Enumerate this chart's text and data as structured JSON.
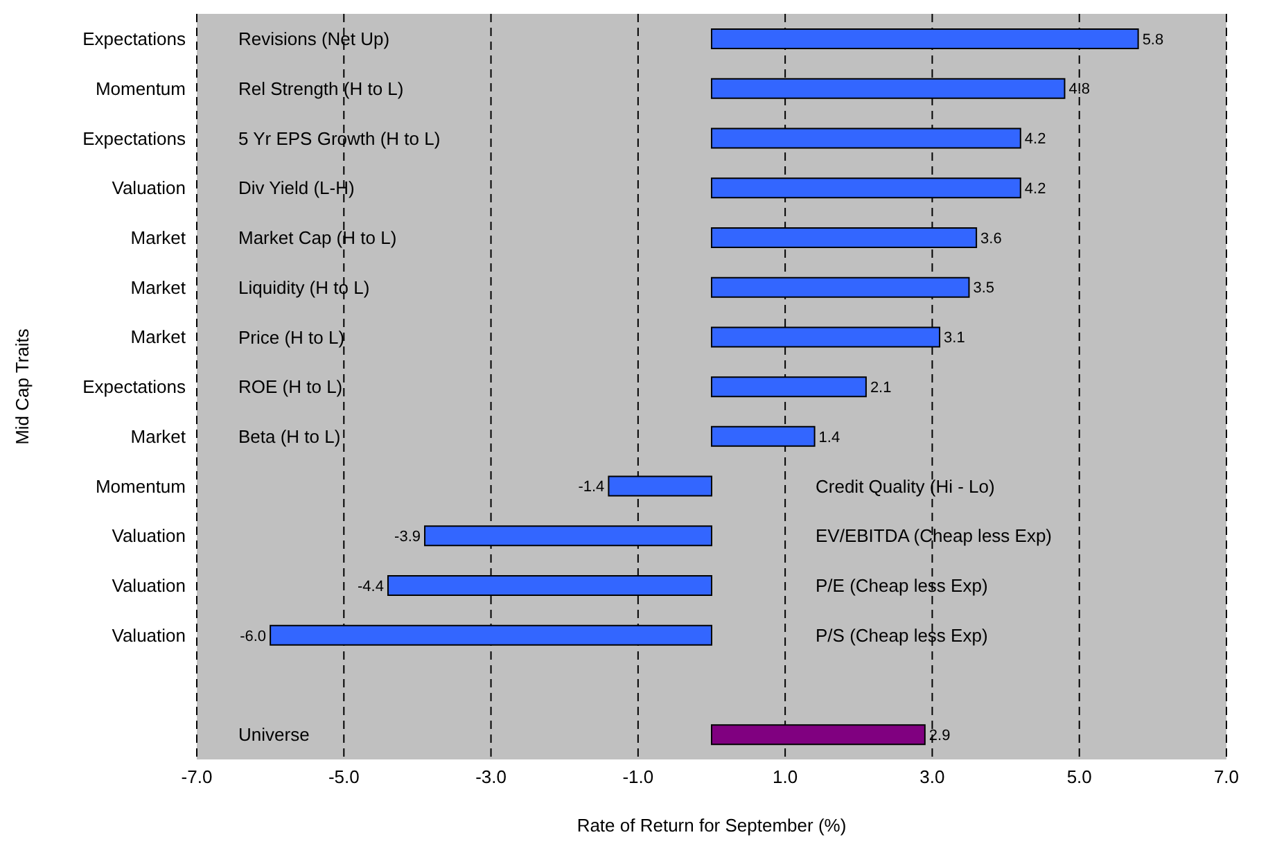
{
  "chart_data": {
    "type": "bar",
    "orientation": "horizontal",
    "xlabel": "Rate of Return for September (%)",
    "ylabel": "Mid Cap Traits",
    "categories": [
      "Expectations",
      "Momentum",
      "Expectations",
      "Valuation",
      "Market",
      "Market",
      "Market",
      "Expectations",
      "Market",
      "Momentum",
      "Valuation",
      "Valuation",
      "Valuation",
      null,
      null
    ],
    "values": [
      5.8,
      4.8,
      4.2,
      4.2,
      3.6,
      3.5,
      3.1,
      2.1,
      1.4,
      -1.4,
      -3.9,
      -4.4,
      -6.0,
      null,
      2.9
    ],
    "value_labels": [
      "5.8",
      "4.8",
      "4.2",
      "4.2",
      "3.6",
      "3.5",
      "3.1",
      "2.1",
      "1.4",
      "-1.4",
      "-3.9",
      "-4.4",
      "-6.0",
      null,
      "2.9"
    ],
    "colors": [
      "#3366ff",
      "#3366ff",
      "#3366ff",
      "#3366ff",
      "#3366ff",
      "#3366ff",
      "#3366ff",
      "#3366ff",
      "#3366ff",
      "#3366ff",
      "#3366ff",
      "#3366ff",
      "#3366ff",
      "#3366ff",
      "#800080"
    ],
    "annotations": [
      "Revisions (Net Up)",
      "Rel Strength (H to L)",
      "5 Yr EPS Growth (H to L)",
      "Div Yield (L-H)",
      "Market Cap (H to L)",
      "Liquidity (H to L)",
      "Price (H to L)",
      "ROE (H to L)",
      "Beta  (H to L)",
      "Credit Quality (Hi - Lo)",
      "EV/EBITDA (Cheap less Exp)",
      "P/E (Cheap less Exp)",
      "P/S (Cheap less Exp)",
      "Universe"
    ],
    "xlim": [
      -7,
      7
    ],
    "xticks": [
      {
        "value": -7,
        "label": "-7.0"
      },
      {
        "value": -5,
        "label": "-5.0"
      },
      {
        "value": -3,
        "label": "-3.0"
      },
      {
        "value": -1,
        "label": "-1.0"
      },
      {
        "value": 1,
        "label": "1.0"
      },
      {
        "value": 3,
        "label": "3.0"
      },
      {
        "value": 5,
        "label": "5.0"
      },
      {
        "value": 7,
        "label": "7.0"
      }
    ],
    "grid": "x"
  }
}
